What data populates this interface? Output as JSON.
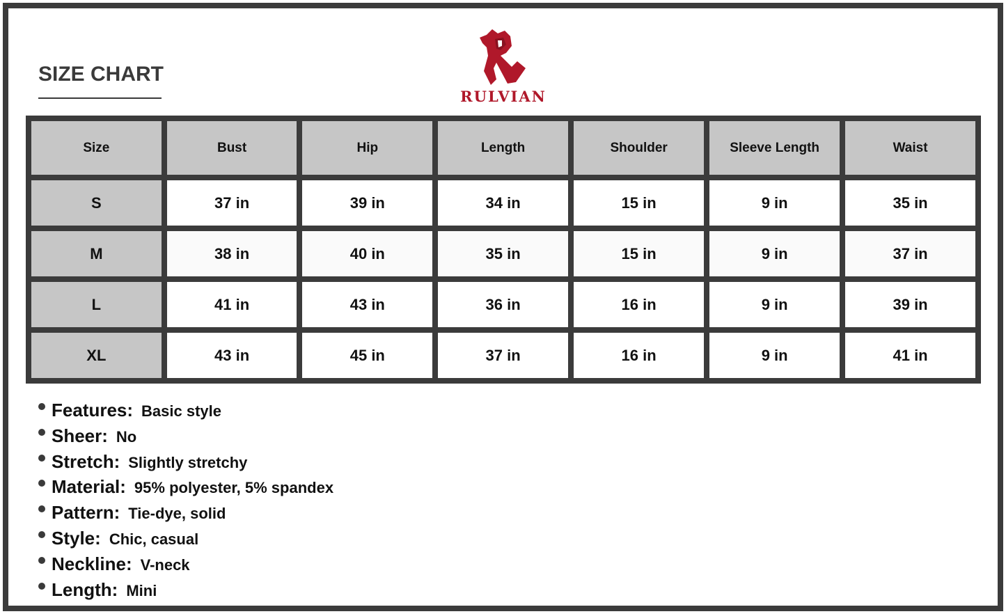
{
  "header": {
    "title": "SIZE CHART",
    "brand": "RULVIAN",
    "brand_color": "#b0182a"
  },
  "table": {
    "columns": [
      "Size",
      "Bust",
      "Hip",
      "Length",
      "Shoulder",
      "Sleeve Length",
      "Waist"
    ],
    "rows": [
      [
        "S",
        "37 in",
        "39 in",
        "34 in",
        "15 in",
        "9 in",
        "35 in"
      ],
      [
        "M",
        "38 in",
        "40 in",
        "35 in",
        "15 in",
        "9 in",
        "37 in"
      ],
      [
        "L",
        "41 in",
        "43 in",
        "36 in",
        "16 in",
        "9 in",
        "39 in"
      ],
      [
        "XL",
        "43 in",
        "45 in",
        "37 in",
        "16 in",
        "9 in",
        "41 in"
      ]
    ]
  },
  "features": [
    {
      "label": "Features:",
      "value": "Basic style"
    },
    {
      "label": "Sheer:",
      "value": "No"
    },
    {
      "label": "Stretch:",
      "value": "Slightly stretchy"
    },
    {
      "label": "Material:",
      "value": "95% polyester, 5% spandex"
    },
    {
      "label": "Pattern:",
      "value": "Tie-dye, solid"
    },
    {
      "label": "Style:",
      "value": "Chic, casual"
    },
    {
      "label": "Neckline:",
      "value": "V-neck"
    },
    {
      "label": "Length:",
      "value": "Mini"
    }
  ]
}
